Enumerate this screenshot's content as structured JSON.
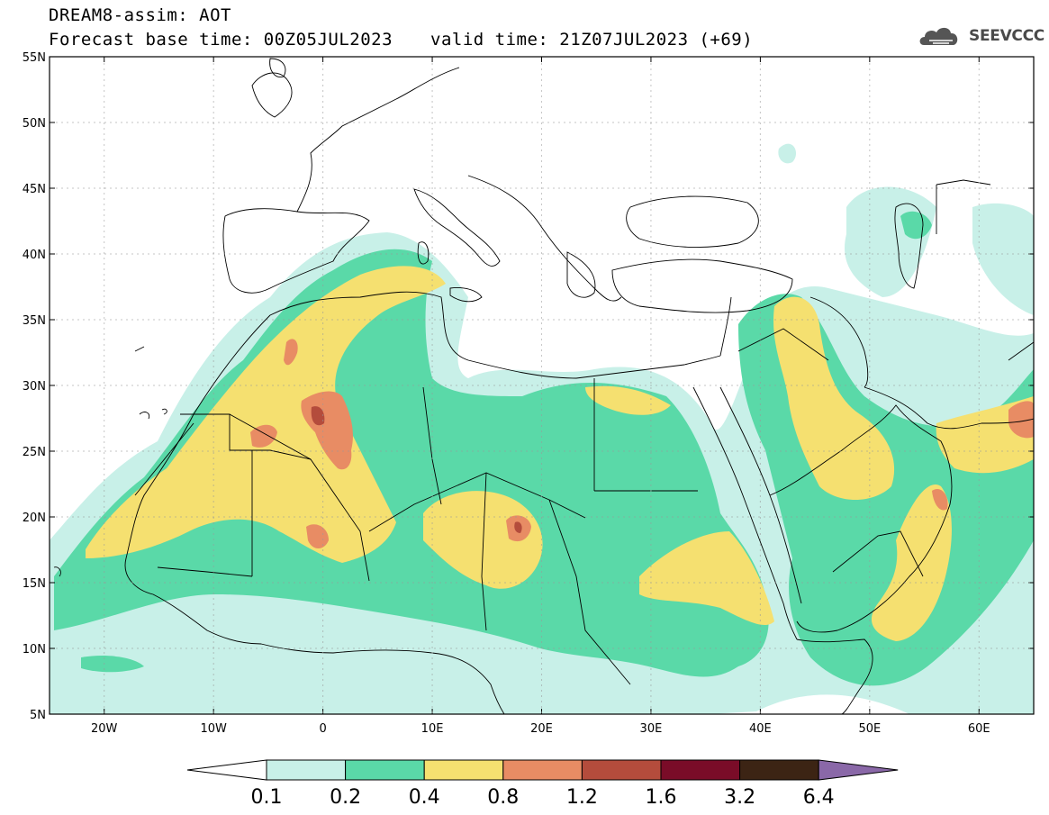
{
  "header": {
    "title": "DREAM8-assim: AOT",
    "base_time": "Forecast base time: 00Z05JUL2023",
    "valid_time": "valid time: 21Z07JUL2023 (+69)"
  },
  "logo": {
    "text": "SEEVCCC",
    "icon": "cloud-icon"
  },
  "map": {
    "lon_range": [
      -25,
      65
    ],
    "lat_range": [
      5,
      55
    ],
    "lat_ticks": [
      "55N",
      "50N",
      "45N",
      "40N",
      "35N",
      "30N",
      "25N",
      "20N",
      "15N",
      "10N",
      "5N"
    ],
    "lon_ticks": [
      "20W",
      "10W",
      "0",
      "10E",
      "20E",
      "30E",
      "40E",
      "50E",
      "60E"
    ]
  },
  "colorbar": {
    "levels": [
      "0.1",
      "0.2",
      "0.4",
      "0.8",
      "1.2",
      "1.6",
      "3.2",
      "6.4"
    ],
    "colors": [
      "#c8f0e8",
      "#5ad9a8",
      "#f5e070",
      "#e88c64",
      "#b44c3c",
      "#7a0c28",
      "#3c2414",
      "#8a68a8"
    ],
    "below_color": "#ffffff",
    "above_color": "#8a68a8"
  },
  "fields": {
    "c1": "#c8f0e8",
    "c2": "#5ad9a8",
    "c3": "#f5e070",
    "c4": "#e88c64",
    "c5": "#b44c3c",
    "c6": "#7a0c28"
  }
}
